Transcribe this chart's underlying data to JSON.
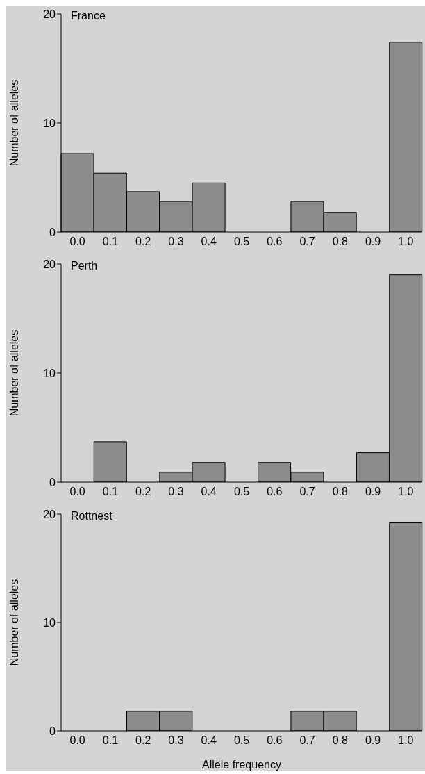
{
  "chart_data": [
    {
      "type": "bar",
      "title": "France",
      "ylabel": "Number of alleles",
      "categories": [
        "0.0",
        "0.1",
        "0.2",
        "0.3",
        "0.4",
        "0.5",
        "0.6",
        "0.7",
        "0.8",
        "0.9",
        "1.0"
      ],
      "values": [
        7.2,
        5.4,
        3.7,
        2.8,
        4.5,
        0,
        0,
        2.8,
        1.8,
        0,
        17.4
      ],
      "color": "#8c8c8c",
      "ylim": [
        0,
        20
      ],
      "yticks": [
        0,
        10,
        20
      ]
    },
    {
      "type": "bar",
      "title": "Perth",
      "ylabel": "Number of alleles",
      "categories": [
        "0.0",
        "0.1",
        "0.2",
        "0.3",
        "0.4",
        "0.5",
        "0.6",
        "0.7",
        "0.8",
        "0.9",
        "1.0"
      ],
      "values": [
        0,
        3.7,
        0,
        0.9,
        1.8,
        0,
        1.8,
        0.9,
        0,
        2.7,
        19
      ],
      "color": "#8c8c8c",
      "ylim": [
        0,
        20
      ],
      "yticks": [
        0,
        10,
        20
      ]
    },
    {
      "type": "bar",
      "title": "Rottnest",
      "ylabel": "Number of alleles",
      "xlabel": "Allele frequency",
      "categories": [
        "0.0",
        "0.1",
        "0.2",
        "0.3",
        "0.4",
        "0.5",
        "0.6",
        "0.7",
        "0.8",
        "0.9",
        "1.0"
      ],
      "values": [
        0,
        0,
        1.8,
        1.8,
        0,
        0,
        0,
        1.8,
        1.8,
        0,
        19.2
      ],
      "color": "#8c8c8c",
      "ylim": [
        0,
        20
      ],
      "yticks": [
        0,
        10,
        20
      ]
    }
  ]
}
